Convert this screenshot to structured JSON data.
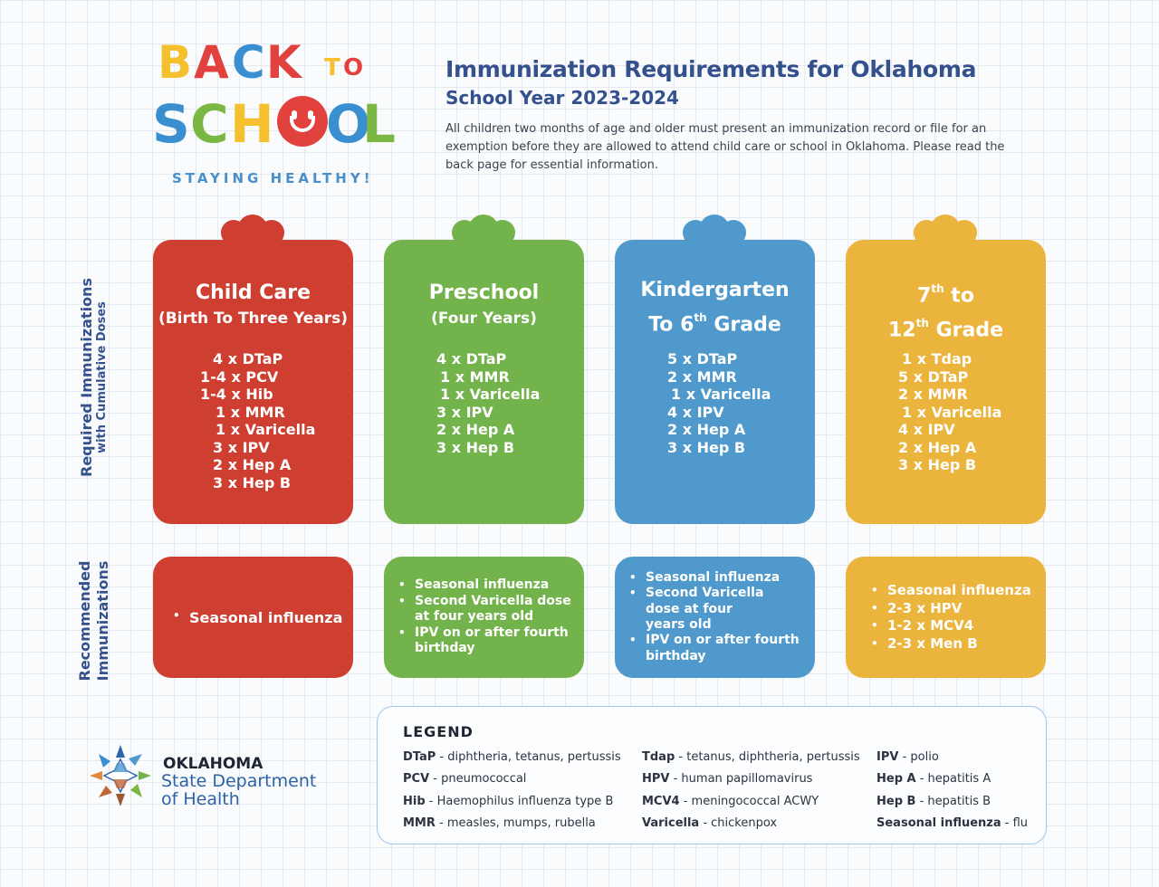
{
  "colors": {
    "red": "#cf3f31",
    "green": "#73b34c",
    "blue": "#4f99cd",
    "yellow": "#ebb43c",
    "navy": "#34518e"
  },
  "logo": {
    "line1": "BACK",
    "to": "TO",
    "line2": "SCHOOL",
    "tagline": "STAYING HEALTHY!"
  },
  "header": {
    "title": "Immunization Requirements for Oklahoma",
    "subtitle": "School Year 2023-2024",
    "intro": "All children two months of age and older must present an immunization record or file for an exemption before they are allowed to attend child care or school in Oklahoma. Please read the back page for essential information."
  },
  "side_labels": {
    "required_line1": "Required Immunizations",
    "required_line2": "with Cumulative Doses",
    "recommended_line1": "Recommended",
    "recommended_line2": "Immunizations"
  },
  "cards": [
    {
      "title": "Child Care",
      "subtitle": "(Birth To Three Years)",
      "doses": [
        "4 x DTaP",
        "1-4 x PCV",
        "1-4 x Hib",
        "1 x MMR",
        "1 x Varicella",
        "3 x IPV",
        "2 x Hep A",
        "3 x Hep B"
      ],
      "recommended": [
        "Seasonal influenza"
      ]
    },
    {
      "title": "Preschool",
      "subtitle": "(Four Years)",
      "doses": [
        "4 x DTaP",
        "1 x MMR",
        "1 x Varicella",
        "3 x IPV",
        "2 x Hep A",
        "3 x Hep B"
      ],
      "recommended": [
        "Seasonal influenza",
        "Second Varicella dose at four years old",
        "IPV on or after fourth birthday"
      ]
    },
    {
      "title_line1": "Kindergarten",
      "title_line2_pre": "To 6",
      "title_line2_sup": "th",
      "title_line2_post": " Grade",
      "doses": [
        "5 x DTaP",
        "2 x MMR",
        "1 x Varicella",
        "4 x IPV",
        "2 x Hep A",
        "3 x Hep B"
      ],
      "recommended": [
        "Seasonal influenza",
        "Second Varicella dose at four years old",
        "IPV on or after fourth birthday"
      ]
    },
    {
      "title_line1_pre": "7",
      "title_line1_sup": "th",
      "title_line1_post": " to",
      "title_line2_pre": "12",
      "title_line2_sup": "th",
      "title_line2_post": " Grade",
      "doses": [
        "1 x Tdap",
        "5 x DTaP",
        "2 x MMR",
        "1 x Varicella",
        "4 x IPV",
        "2 x Hep A",
        "3 x Hep B"
      ],
      "recommended": [
        "Seasonal influenza",
        "2-3 x HPV",
        "1-2 x MCV4",
        "2-3 x Men B"
      ]
    }
  ],
  "legend": {
    "title": "LEGEND",
    "columns": [
      [
        {
          "term": "DTaP",
          "def": " - diphtheria, tetanus, pertussis"
        },
        {
          "term": "PCV",
          "def": " - pneumococcal"
        },
        {
          "term": "Hib",
          "def": " - Haemophilus influenza type B"
        },
        {
          "term": "MMR",
          "def": " - measles, mumps, rubella"
        }
      ],
      [
        {
          "term": "Tdap",
          "def": " - tetanus, diphtheria, pertussis"
        },
        {
          "term": "HPV",
          "def": " - human papillomavirus"
        },
        {
          "term": "MCV4",
          "def": " - meningococcal ACWY"
        },
        {
          "term": "Varicella",
          "def": " - chickenpox"
        }
      ],
      [
        {
          "term": "IPV",
          "def": " - polio"
        },
        {
          "term": "Hep A",
          "def": " - hepatitis A"
        },
        {
          "term": "Hep B",
          "def": " - hepatitis B"
        },
        {
          "term": "Seasonal influenza",
          "def": " - flu"
        }
      ]
    ]
  },
  "agency": {
    "line1": "OKLAHOMA",
    "line2": "State Department",
    "line3": "of Health"
  }
}
